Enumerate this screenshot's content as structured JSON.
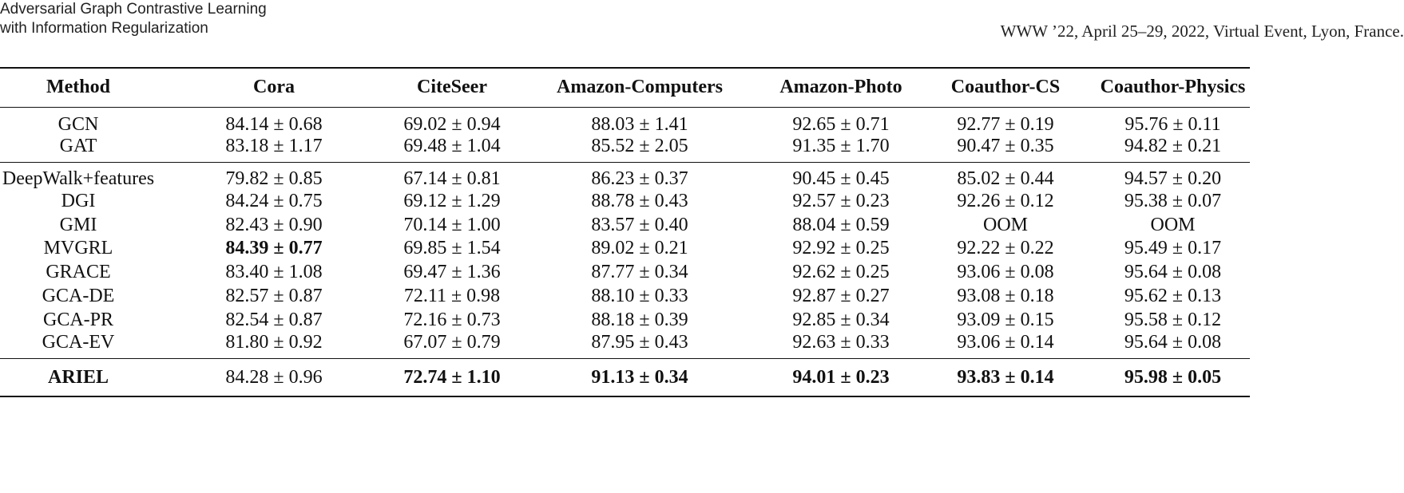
{
  "running_header": {
    "title_line1": "Adversarial Graph Contrastive Learning",
    "title_line2": "with Information Regularization",
    "venue": "WWW ’22, April 25–29, 2022, Virtual Event, Lyon, France."
  },
  "table": {
    "columns": [
      "Method",
      "Cora",
      "CiteSeer",
      "Amazon-Computers",
      "Amazon-Photo",
      "Coauthor-CS",
      "Coauthor-Physics"
    ],
    "groups": [
      [
        {
          "method": "GCN",
          "values": [
            "84.14 ± 0.68",
            "69.02 ± 0.94",
            "88.03 ± 1.41",
            "92.65 ± 0.71",
            "92.77 ± 0.19",
            "95.76 ± 0.11"
          ],
          "bold": [
            false,
            false,
            false,
            false,
            false,
            false
          ]
        },
        {
          "method": "GAT",
          "values": [
            "83.18 ± 1.17",
            "69.48 ± 1.04",
            "85.52 ± 2.05",
            "91.35 ± 1.70",
            "90.47 ± 0.35",
            "94.82 ± 0.21"
          ],
          "bold": [
            false,
            false,
            false,
            false,
            false,
            false
          ]
        }
      ],
      [
        {
          "method": "DeepWalk+features",
          "values": [
            "79.82 ± 0.85",
            "67.14 ± 0.81",
            "86.23 ± 0.37",
            "90.45 ± 0.45",
            "85.02 ± 0.44",
            "94.57 ± 0.20"
          ],
          "bold": [
            false,
            false,
            false,
            false,
            false,
            false
          ]
        },
        {
          "method": "DGI",
          "values": [
            "84.24 ± 0.75",
            "69.12 ± 1.29",
            "88.78 ± 0.43",
            "92.57 ± 0.23",
            "92.26 ± 0.12",
            "95.38 ± 0.07"
          ],
          "bold": [
            false,
            false,
            false,
            false,
            false,
            false
          ]
        },
        {
          "method": "GMI",
          "values": [
            "82.43 ± 0.90",
            "70.14 ± 1.00",
            "83.57 ± 0.40",
            "88.04 ± 0.59",
            "OOM",
            "OOM"
          ],
          "bold": [
            false,
            false,
            false,
            false,
            false,
            false
          ]
        },
        {
          "method": "MVGRL",
          "values": [
            "84.39 ± 0.77",
            "69.85 ± 1.54",
            "89.02 ± 0.21",
            "92.92 ± 0.25",
            "92.22 ± 0.22",
            "95.49 ± 0.17"
          ],
          "bold": [
            true,
            false,
            false,
            false,
            false,
            false
          ]
        },
        {
          "method": "GRACE",
          "values": [
            "83.40 ± 1.08",
            "69.47 ± 1.36",
            "87.77 ± 0.34",
            "92.62 ± 0.25",
            "93.06 ± 0.08",
            "95.64 ± 0.08"
          ],
          "bold": [
            false,
            false,
            false,
            false,
            false,
            false
          ]
        },
        {
          "method": "GCA-DE",
          "values": [
            "82.57 ± 0.87",
            "72.11 ± 0.98",
            "88.10 ± 0.33",
            "92.87 ± 0.27",
            "93.08 ± 0.18",
            "95.62 ± 0.13"
          ],
          "bold": [
            false,
            false,
            false,
            false,
            false,
            false
          ]
        },
        {
          "method": "GCA-PR",
          "values": [
            "82.54 ± 0.87",
            "72.16 ± 0.73",
            "88.18 ± 0.39",
            "92.85 ± 0.34",
            "93.09 ± 0.15",
            "95.58 ± 0.12"
          ],
          "bold": [
            false,
            false,
            false,
            false,
            false,
            false
          ]
        },
        {
          "method": "GCA-EV",
          "values": [
            "81.80 ± 0.92",
            "67.07 ± 0.79",
            "87.95 ± 0.43",
            "92.63 ± 0.33",
            "93.06 ± 0.14",
            "95.64 ± 0.08"
          ],
          "bold": [
            false,
            false,
            false,
            false,
            false,
            false
          ]
        }
      ],
      [
        {
          "method": "ARIEL",
          "method_bold": true,
          "values": [
            "84.28 ± 0.96",
            "72.74 ± 1.10",
            "91.13 ± 0.34",
            "94.01 ± 0.23",
            "93.83 ± 0.14",
            "95.98 ± 0.05"
          ],
          "bold": [
            false,
            true,
            true,
            true,
            true,
            true
          ]
        }
      ]
    ]
  }
}
